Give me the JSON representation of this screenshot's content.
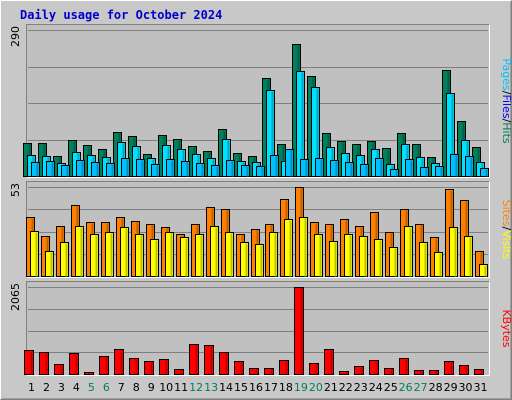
{
  "colors": {
    "frame_bg": "#c8c8c8",
    "plot_bg": "#c0c0c0",
    "hits": "#00805c",
    "files": "#00e0ff",
    "pages": "#00c0ff",
    "visits": "#ff8000",
    "sites": "#ffff00",
    "kbytes": "#ff0000",
    "weekend": "#00805c",
    "weekday": "#000000",
    "title": "#0000cc",
    "hits_label": "#00805c",
    "files_label": "#0000ff",
    "pages_label": "#00c0ff",
    "visits_label": "#ffff00",
    "sites_label": "#ff8000",
    "kbytes_label": "#ff0000"
  },
  "chart_data": {
    "type": "bar",
    "title": "Daily usage for October 2024",
    "categories": [
      "1",
      "2",
      "3",
      "4",
      "5",
      "6",
      "7",
      "8",
      "9",
      "10",
      "11",
      "12",
      "13",
      "14",
      "15",
      "16",
      "17",
      "18",
      "19",
      "20",
      "21",
      "22",
      "23",
      "24",
      "25",
      "26",
      "27",
      "28",
      "29",
      "30",
      "31"
    ],
    "weekend_days": [
      "5",
      "6",
      "12",
      "13",
      "19",
      "20",
      "26",
      "27"
    ],
    "panels": [
      {
        "name": "hits-files-pages",
        "ymax_label": "290",
        "ylim": [
          0,
          290
        ],
        "legend": [
          "Pages",
          "Files",
          "Hits"
        ],
        "series": [
          {
            "name": "Hits",
            "values": [
              66,
              66,
              40,
              71,
              62,
              54,
              88,
              80,
              44,
              82,
              74,
              60,
              50,
              94,
              45,
              40,
              195,
              64,
              262,
              198,
              86,
              70,
              64,
              70,
              56,
              86,
              64,
              38,
              210,
              109,
              57
            ]
          },
          {
            "name": "Files",
            "values": [
              42,
              40,
              26,
              48,
              42,
              38,
              68,
              60,
              35,
              62,
              54,
              44,
              36,
              74,
              30,
              28,
              170,
              30,
              208,
              176,
              58,
              46,
              42,
              54,
              24,
              64,
              38,
              26,
              164,
              72,
              28
            ]
          },
          {
            "name": "Pages",
            "values": [
              28,
              30,
              22,
              32,
              28,
              26,
              36,
              34,
              24,
              34,
              30,
              26,
              22,
              32,
              22,
              20,
              42,
              54,
              34,
              36,
              32,
              28,
              24,
              36,
              14,
              34,
              18,
              20,
              44,
              40,
              16
            ]
          }
        ]
      },
      {
        "name": "visits-sites",
        "ymax_label": "53",
        "ylim": [
          0,
          53
        ],
        "legend": [
          "Sites",
          "Visits"
        ],
        "series": [
          {
            "name": "Visits",
            "values": [
              35,
              24,
              30,
              42,
              32,
              32,
              35,
              33,
              31,
              29,
              25,
              31,
              41,
              40,
              25,
              28,
              31,
              46,
              53,
              32,
              31,
              34,
              30,
              38,
              26,
              40,
              31,
              23,
              52,
              45,
              15
            ]
          },
          {
            "name": "Sites",
            "values": [
              27,
              15,
              20,
              30,
              25,
              26,
              29,
              25,
              22,
              26,
              23,
              25,
              30,
              26,
              20,
              19,
              26,
              34,
              35,
              25,
              21,
              25,
              24,
              22,
              17,
              30,
              20,
              14,
              29,
              24,
              7
            ]
          }
        ]
      },
      {
        "name": "kbytes",
        "ymax_label": "2065",
        "ylim": [
          0,
          2065
        ],
        "legend": [
          "KBytes"
        ],
        "series": [
          {
            "name": "KBytes",
            "values": [
              580,
              530,
              240,
              510,
              40,
              430,
              600,
              390,
              300,
              350,
              110,
              710,
              690,
              520,
              310,
              140,
              140,
              330,
              2065,
              270,
              590,
              60,
              190,
              340,
              150,
              380,
              100,
              90,
              300,
              220,
              110
            ]
          }
        ]
      }
    ]
  }
}
